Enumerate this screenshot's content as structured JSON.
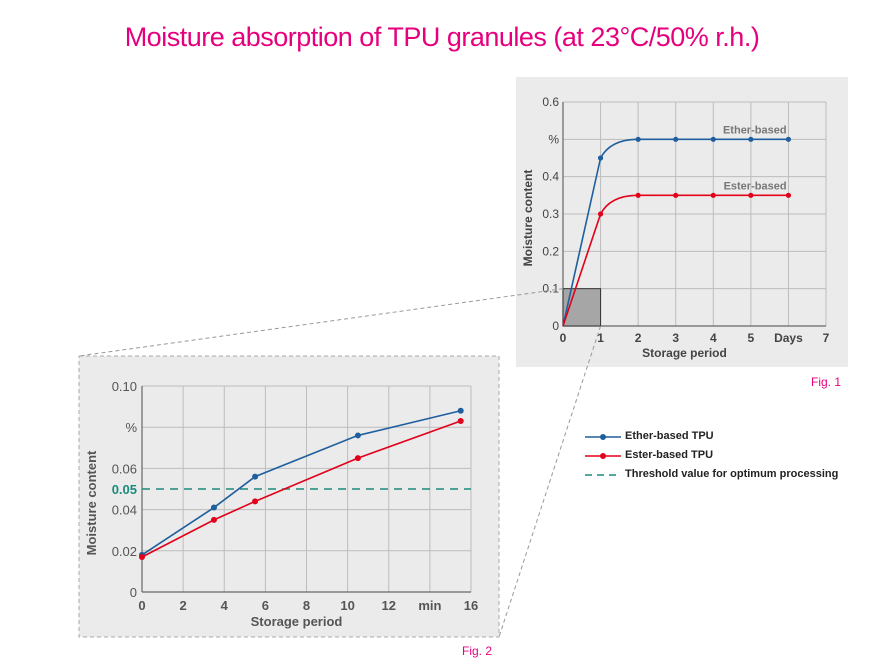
{
  "title": "Moisture absorption of TPU granules (at 23°C/50% r.h.)",
  "colors": {
    "ether": "#1f5f9e",
    "ester": "#e2001a",
    "threshold": "#1a8a7a",
    "title": "#e6007e",
    "grid": "#bdbdbd",
    "panel": "#ebebeb"
  },
  "legend": {
    "ether": "Ether-based TPU",
    "ester": "Ester-based TPU",
    "threshold": "Threshold value for optimum processing"
  },
  "chart_data": [
    {
      "type": "line",
      "caption": "Fig. 1",
      "xlabel": "Storage period",
      "ylabel": "Moisture content",
      "xlim": [
        0,
        7
      ],
      "ylim": [
        0,
        0.6
      ],
      "x_ticks": [
        "0",
        "1",
        "2",
        "3",
        "4",
        "5",
        "Days",
        "7"
      ],
      "y_ticks": [
        "0",
        "0.1",
        "0.2",
        "0.3",
        "0.4",
        "%",
        "0.6"
      ],
      "grid": true,
      "series": [
        {
          "name": "Ether-based",
          "x": [
            0,
            1,
            2,
            3,
            4,
            5,
            6
          ],
          "y": [
            0,
            0.45,
            0.5,
            0.5,
            0.5,
            0.5,
            0.5
          ]
        },
        {
          "name": "Ester-based",
          "x": [
            0,
            1,
            2,
            3,
            4,
            5,
            6
          ],
          "y": [
            0,
            0.3,
            0.35,
            0.35,
            0.35,
            0.35,
            0.35
          ]
        }
      ],
      "zoom_box": {
        "x": [
          0,
          1
        ],
        "y": [
          0,
          0.1
        ]
      }
    },
    {
      "type": "line",
      "caption": "Fig. 2",
      "xlabel": "Storage period",
      "ylabel": "Moisture content",
      "xlim": [
        0,
        16
      ],
      "ylim": [
        0,
        0.1
      ],
      "x_ticks": [
        "0",
        "2",
        "4",
        "6",
        "8",
        "10",
        "12",
        "min",
        "16"
      ],
      "y_ticks": [
        "0",
        "0.02",
        "0.04",
        "0.05",
        "0.06",
        "%",
        "0.10"
      ],
      "grid": true,
      "threshold": 0.05,
      "series": [
        {
          "name": "Ether-based TPU",
          "x": [
            0,
            3.5,
            5.5,
            10.5,
            15.5
          ],
          "y": [
            0.018,
            0.041,
            0.056,
            0.076,
            0.088
          ]
        },
        {
          "name": "Ester-based TPU",
          "x": [
            0,
            3.5,
            5.5,
            10.5,
            15.5
          ],
          "y": [
            0.017,
            0.035,
            0.044,
            0.065,
            0.083
          ]
        }
      ]
    }
  ]
}
